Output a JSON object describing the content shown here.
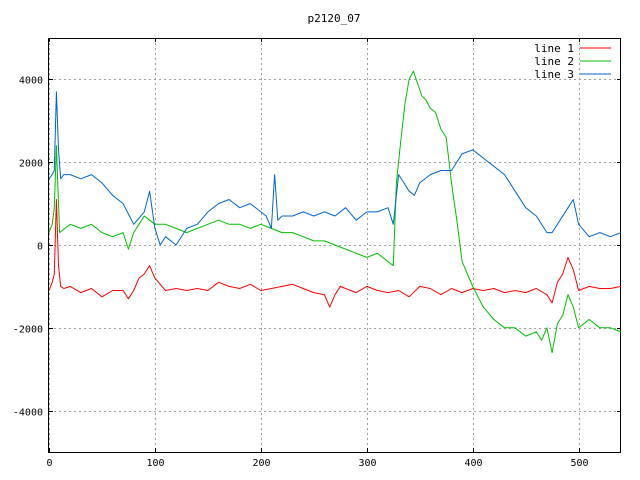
{
  "chart_data": {
    "type": "line",
    "title": "p2120_07",
    "xlabel": "",
    "ylabel": "",
    "xlim": [
      0,
      540
    ],
    "ylim": [
      -5000,
      5000
    ],
    "x_ticks": [
      0,
      100,
      200,
      300,
      400,
      500
    ],
    "y_ticks": [
      -4000,
      -2000,
      0,
      2000,
      4000
    ],
    "grid": true,
    "legend_position": "top-right",
    "series": [
      {
        "name": "line 1",
        "color": "#ff0000",
        "x": [
          0,
          3,
          5,
          7,
          9,
          11,
          14,
          20,
          30,
          40,
          50,
          60,
          70,
          75,
          80,
          85,
          90,
          95,
          100,
          110,
          120,
          130,
          140,
          150,
          160,
          170,
          180,
          190,
          200,
          210,
          220,
          230,
          240,
          250,
          260,
          265,
          270,
          275,
          280,
          290,
          300,
          310,
          320,
          330,
          340,
          350,
          360,
          370,
          380,
          390,
          400,
          410,
          420,
          430,
          440,
          450,
          460,
          470,
          475,
          480,
          485,
          490,
          495,
          500,
          510,
          520,
          530,
          540
        ],
        "y": [
          -1100,
          -900,
          -700,
          1100,
          -500,
          -1000,
          -1050,
          -1000,
          -1150,
          -1050,
          -1250,
          -1100,
          -1100,
          -1300,
          -1100,
          -800,
          -700,
          -500,
          -800,
          -1100,
          -1050,
          -1100,
          -1050,
          -1100,
          -900,
          -1000,
          -1050,
          -950,
          -1100,
          -1050,
          -1000,
          -950,
          -1050,
          -1150,
          -1200,
          -1500,
          -1200,
          -1000,
          -1050,
          -1150,
          -1000,
          -1100,
          -1150,
          -1100,
          -1250,
          -1000,
          -1050,
          -1200,
          -1050,
          -1150,
          -1050,
          -1100,
          -1050,
          -1150,
          -1100,
          -1150,
          -1050,
          -1200,
          -1400,
          -900,
          -700,
          -300,
          -600,
          -1100,
          -1000,
          -1050,
          -1050,
          -1000
        ]
      },
      {
        "name": "line 2",
        "color": "#00c000",
        "x": [
          0,
          3,
          5,
          7,
          10,
          15,
          20,
          30,
          40,
          50,
          60,
          70,
          75,
          80,
          85,
          90,
          95,
          100,
          110,
          120,
          130,
          140,
          150,
          160,
          170,
          180,
          190,
          200,
          210,
          220,
          230,
          240,
          250,
          260,
          270,
          280,
          290,
          300,
          310,
          320,
          325,
          328,
          332,
          336,
          340,
          344,
          348,
          352,
          356,
          360,
          365,
          370,
          375,
          380,
          385,
          390,
          395,
          400,
          410,
          420,
          430,
          440,
          450,
          460,
          465,
          470,
          475,
          480,
          485,
          490,
          495,
          500,
          510,
          520,
          530,
          540
        ],
        "y": [
          300,
          500,
          900,
          2400,
          300,
          400,
          500,
          400,
          500,
          300,
          200,
          300,
          -100,
          300,
          500,
          700,
          600,
          500,
          500,
          400,
          300,
          400,
          500,
          600,
          500,
          500,
          400,
          500,
          400,
          300,
          300,
          200,
          100,
          100,
          0,
          -100,
          -200,
          -300,
          -200,
          -400,
          -500,
          1500,
          2500,
          3400,
          4000,
          4200,
          3900,
          3600,
          3500,
          3300,
          3200,
          2800,
          2600,
          1500,
          600,
          -400,
          -700,
          -1000,
          -1500,
          -1800,
          -2000,
          -2000,
          -2200,
          -2100,
          -2300,
          -2000,
          -2600,
          -1900,
          -1700,
          -1200,
          -1500,
          -2000,
          -1800,
          -2000,
          -2000,
          -2100
        ]
      },
      {
        "name": "line 3",
        "color": "#0066cc",
        "x": [
          0,
          3,
          5,
          7,
          9,
          11,
          14,
          20,
          30,
          40,
          50,
          60,
          70,
          80,
          90,
          95,
          100,
          105,
          110,
          120,
          130,
          140,
          150,
          160,
          170,
          180,
          190,
          200,
          205,
          210,
          213,
          216,
          220,
          230,
          240,
          250,
          260,
          270,
          280,
          290,
          300,
          310,
          320,
          325,
          330,
          335,
          340,
          345,
          350,
          360,
          370,
          380,
          390,
          400,
          410,
          420,
          430,
          440,
          450,
          460,
          470,
          475,
          480,
          490,
          495,
          500,
          510,
          520,
          530,
          540
        ],
        "y": [
          1600,
          1700,
          1800,
          3700,
          2300,
          1600,
          1700,
          1700,
          1600,
          1700,
          1500,
          1200,
          1000,
          500,
          800,
          1300,
          400,
          0,
          200,
          0,
          400,
          500,
          800,
          1000,
          1100,
          900,
          1000,
          800,
          700,
          400,
          1700,
          600,
          700,
          700,
          800,
          700,
          800,
          700,
          900,
          600,
          800,
          800,
          900,
          500,
          1700,
          1500,
          1300,
          1200,
          1500,
          1700,
          1800,
          1800,
          2200,
          2300,
          2100,
          1900,
          1700,
          1300,
          900,
          700,
          300,
          300,
          500,
          900,
          1100,
          500,
          200,
          300,
          200,
          300
        ]
      }
    ]
  }
}
